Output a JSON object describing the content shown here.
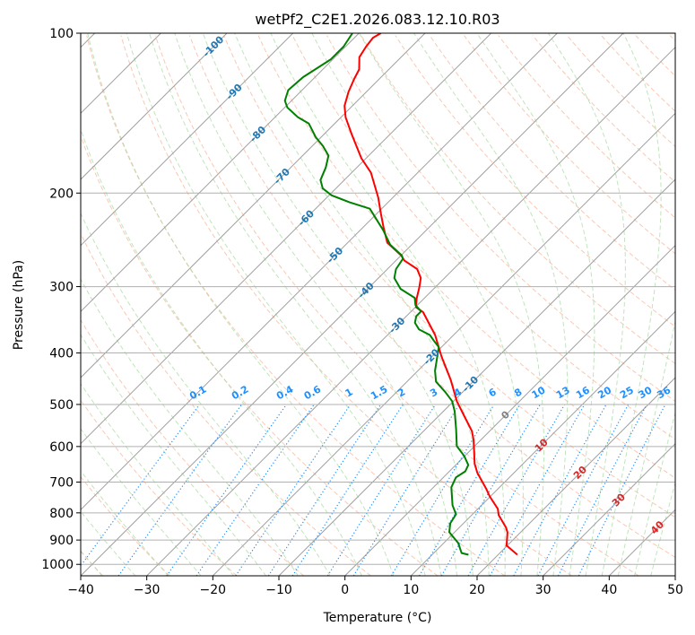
{
  "chart_data": {
    "type": "line",
    "subtype": "skew-t log-p",
    "title": "wetPf2_C2E1.2026.083.12.10.R03",
    "xlabel": "Temperature (°C)",
    "ylabel": "Pressure (hPa)",
    "xlim": [
      -40,
      50
    ],
    "ylim": [
      1050,
      100
    ],
    "x_ticks": [
      -40,
      -30,
      -20,
      -10,
      0,
      10,
      20,
      30,
      40,
      50
    ],
    "y_ticks": [
      100,
      200,
      300,
      400,
      500,
      600,
      700,
      800,
      900,
      1000
    ],
    "grid": true,
    "colors": {
      "temperature": "#ff0000",
      "dewpoint": "#008000",
      "isotherm": "#a0a0a0",
      "dry_adiabat": "#f4a582",
      "moist_adiabat": "#a6d8a0",
      "mixing_ratio": "#1e90ff",
      "cold_label": "#1f77b4",
      "zero_label": "#808080",
      "warm_label": "#d62728"
    },
    "series": [
      {
        "name": "Temperature",
        "points_p_T": [
          [
            959,
            22.9
          ],
          [
            922,
            19.9
          ],
          [
            870,
            18.0
          ],
          [
            853,
            17.1
          ],
          [
            808,
            14.1
          ],
          [
            786,
            13.0
          ],
          [
            745,
            9.9
          ],
          [
            722,
            8.3
          ],
          [
            673,
            4.5
          ],
          [
            647,
            2.7
          ],
          [
            583,
            -1.1
          ],
          [
            561,
            -2.7
          ],
          [
            525,
            -6.2
          ],
          [
            493,
            -9.5
          ],
          [
            461,
            -12.5
          ],
          [
            449,
            -13.7
          ],
          [
            406,
            -18.6
          ],
          [
            370,
            -22.8
          ],
          [
            355,
            -25.0
          ],
          [
            335,
            -28.1
          ],
          [
            328,
            -29.9
          ],
          [
            316,
            -31.1
          ],
          [
            301,
            -32.4
          ],
          [
            289,
            -33.6
          ],
          [
            278,
            -35.5
          ],
          [
            268,
            -38.7
          ],
          [
            262,
            -40.0
          ],
          [
            248,
            -44.0
          ],
          [
            232,
            -46.9
          ],
          [
            218,
            -49.5
          ],
          [
            204,
            -52.2
          ],
          [
            183,
            -57.1
          ],
          [
            172,
            -60.7
          ],
          [
            155,
            -65.8
          ],
          [
            144,
            -69.3
          ],
          [
            137,
            -71.2
          ],
          [
            129,
            -72.7
          ],
          [
            122,
            -73.8
          ],
          [
            117,
            -74.5
          ],
          [
            111,
            -76.3
          ],
          [
            106,
            -76.9
          ],
          [
            102,
            -77.2
          ],
          [
            100,
            -76.7
          ]
        ]
      },
      {
        "name": "Dewpoint",
        "points_p_T": [
          [
            959,
            15.5
          ],
          [
            952,
            14.2
          ],
          [
            912,
            12.2
          ],
          [
            870,
            9.2
          ],
          [
            837,
            8.0
          ],
          [
            805,
            7.5
          ],
          [
            774,
            5.6
          ],
          [
            716,
            2.7
          ],
          [
            686,
            1.9
          ],
          [
            668,
            2.4
          ],
          [
            650,
            1.9
          ],
          [
            625,
            -0.1
          ],
          [
            599,
            -2.7
          ],
          [
            556,
            -5.4
          ],
          [
            515,
            -8.3
          ],
          [
            493,
            -10.2
          ],
          [
            474,
            -12.6
          ],
          [
            453,
            -15.6
          ],
          [
            432,
            -17.4
          ],
          [
            390,
            -20.4
          ],
          [
            380,
            -22.0
          ],
          [
            370,
            -23.6
          ],
          [
            361,
            -26.1
          ],
          [
            351,
            -27.7
          ],
          [
            341,
            -28.5
          ],
          [
            334,
            -28.5
          ],
          [
            325,
            -30.3
          ],
          [
            315,
            -31.5
          ],
          [
            303,
            -35.0
          ],
          [
            289,
            -37.6
          ],
          [
            278,
            -38.7
          ],
          [
            266,
            -39.2
          ],
          [
            262,
            -39.9
          ],
          [
            250,
            -43.3
          ],
          [
            235,
            -46.5
          ],
          [
            214,
            -51.8
          ],
          [
            208,
            -55.9
          ],
          [
            202,
            -59.6
          ],
          [
            196,
            -62.0
          ],
          [
            189,
            -63.6
          ],
          [
            179,
            -64.7
          ],
          [
            170,
            -66.1
          ],
          [
            163,
            -68.4
          ],
          [
            157,
            -70.8
          ],
          [
            148,
            -73.9
          ],
          [
            144,
            -76.5
          ],
          [
            138,
            -79.6
          ],
          [
            134,
            -81.0
          ],
          [
            128,
            -82.1
          ],
          [
            121,
            -81.8
          ],
          [
            112,
            -80.3
          ],
          [
            106,
            -80.3
          ],
          [
            100,
            -81.0
          ]
        ]
      }
    ],
    "isotherm_labels": [
      "-100",
      "-90",
      "-80",
      "-70",
      "-60",
      "-50",
      "-40",
      "-30",
      "-20",
      "-10",
      "0",
      "10",
      "20",
      "30",
      "40"
    ],
    "mixing_ratio_labels": [
      "0.1",
      "0.2",
      "0.4",
      "0.6",
      "1",
      "1.5",
      "2",
      "3",
      "4",
      "6",
      "8",
      "10",
      "13",
      "16",
      "20",
      "25",
      "30",
      "36"
    ]
  }
}
